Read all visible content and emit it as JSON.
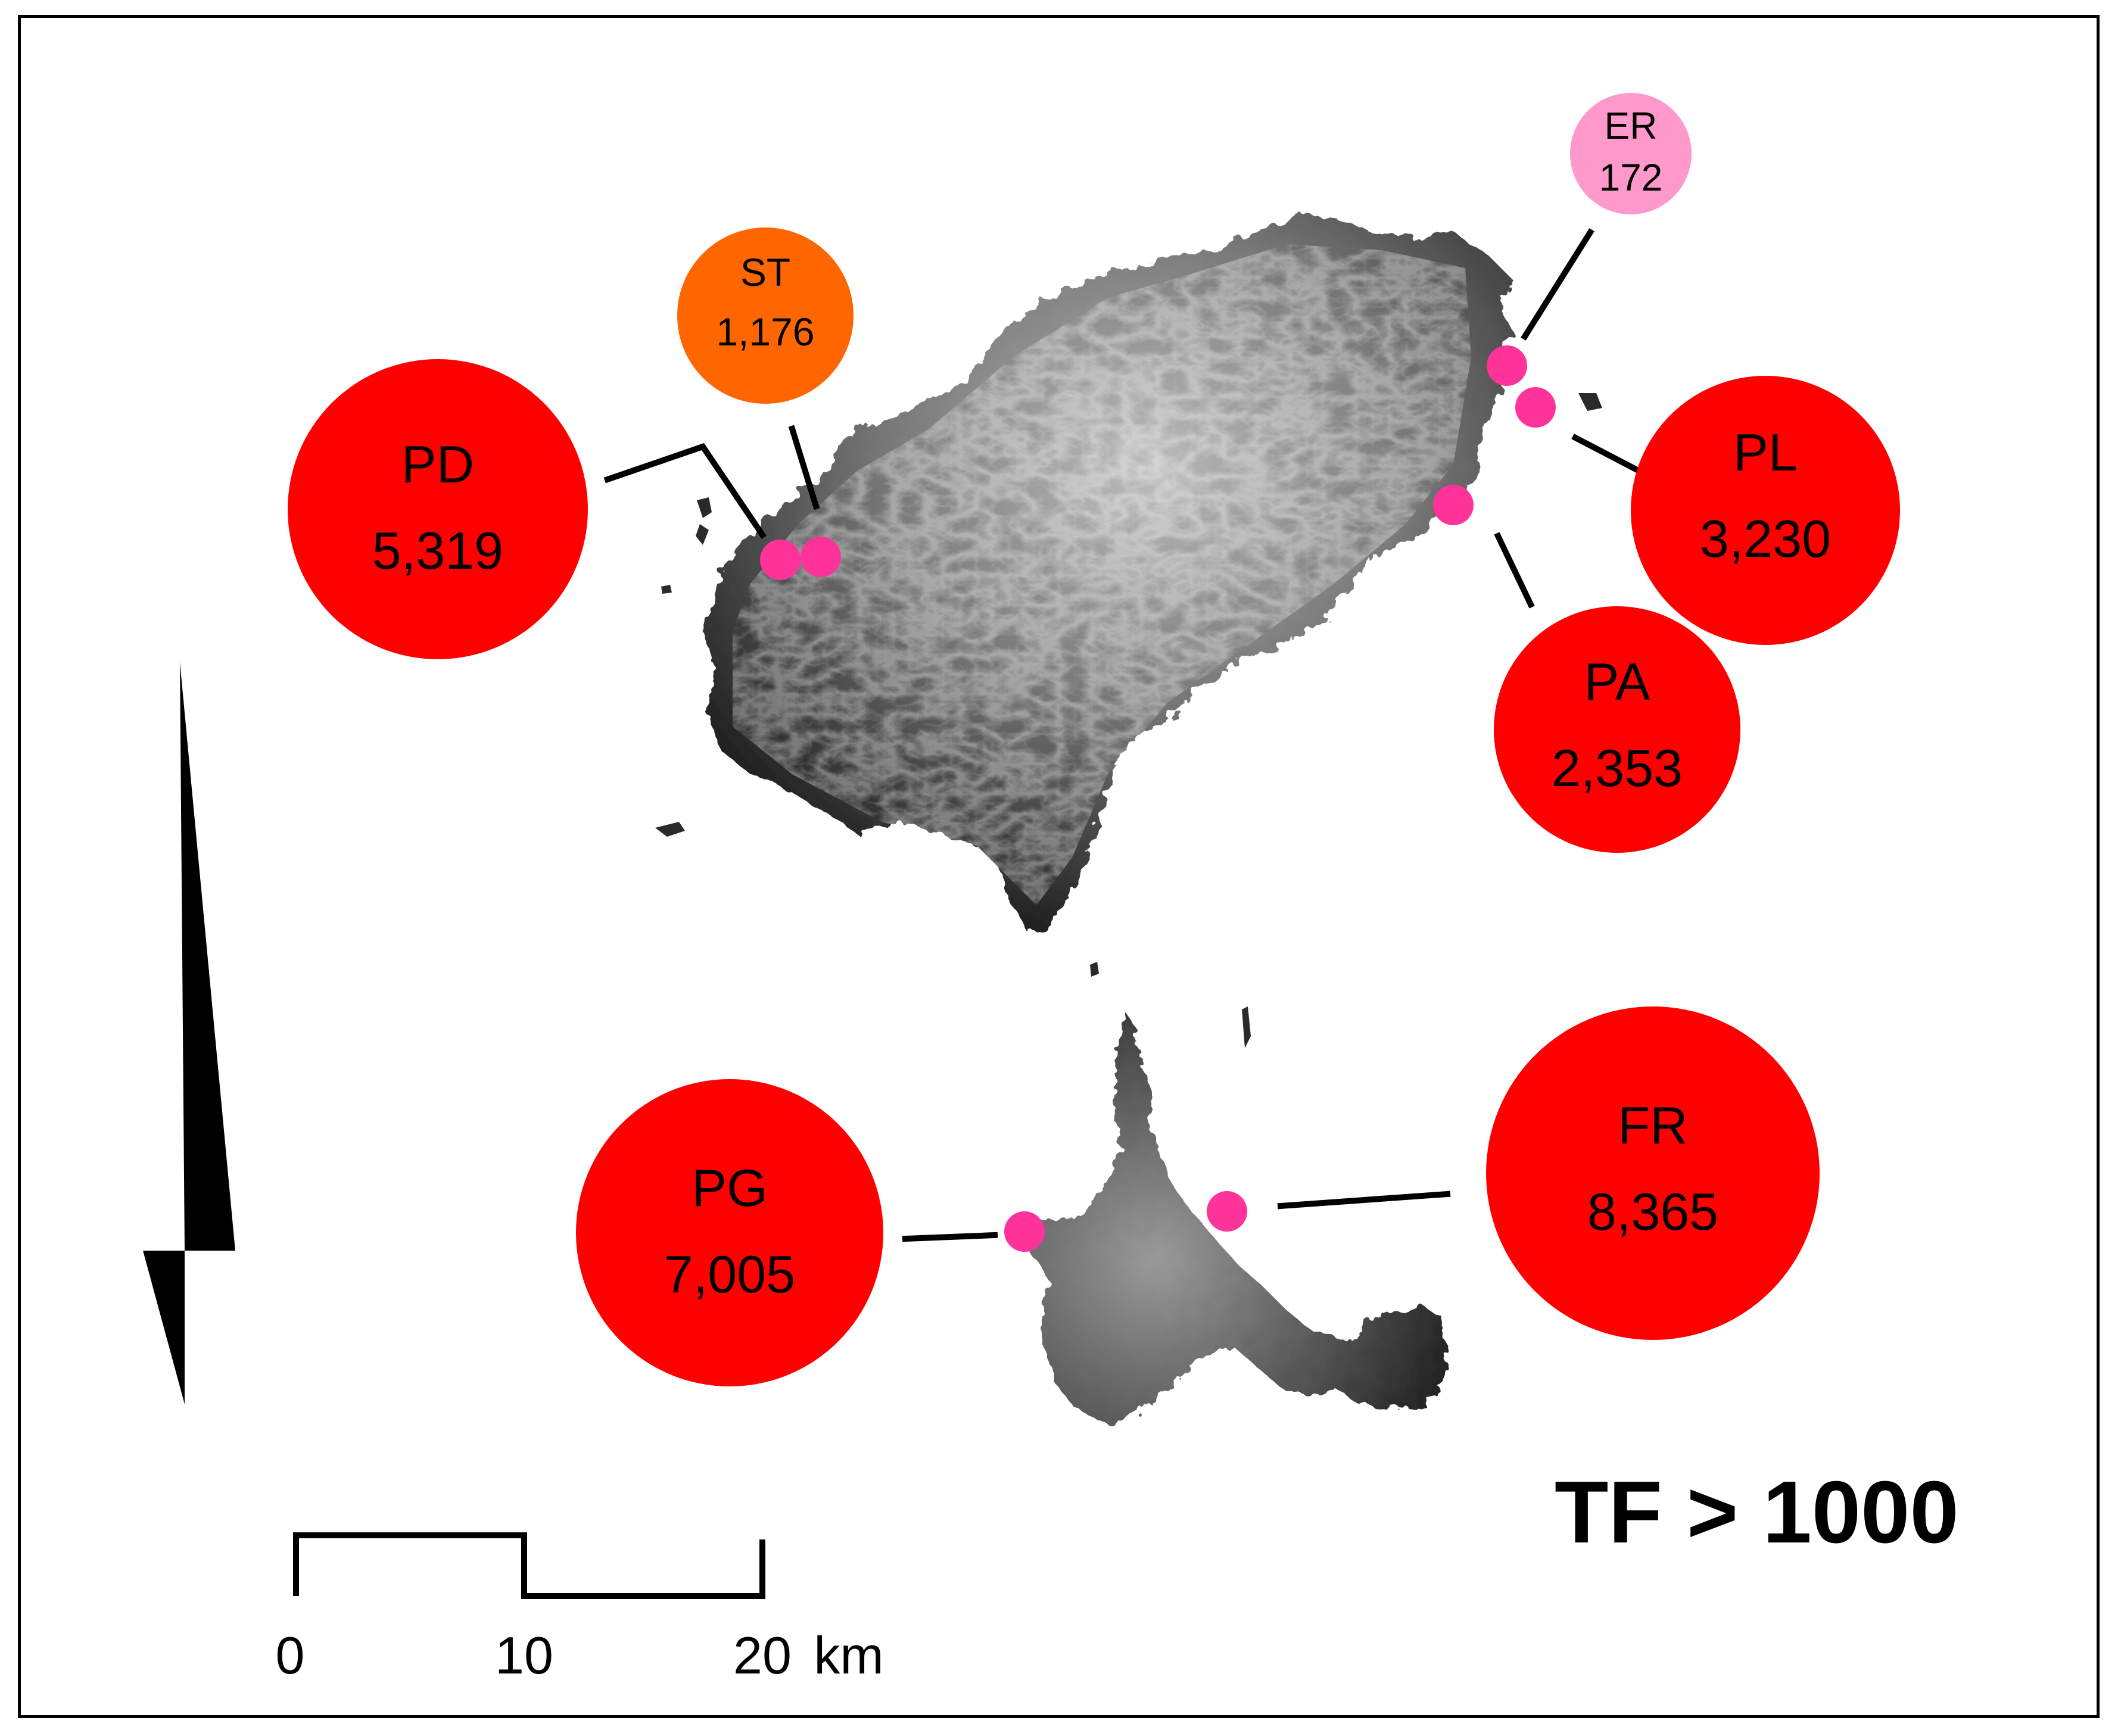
{
  "threshold_label": "TF > 1000",
  "scale_bar": {
    "tick_0": "0",
    "tick_10": "10",
    "tick_20": "20",
    "unit": "km"
  },
  "colors": {
    "high": "#ff0000",
    "medium": "#ff6600",
    "low": "#ff99cc",
    "site_dot": "#ff3399",
    "terrain_dark": "#111111",
    "terrain_light": "#cfcfcf"
  },
  "sites": [
    {
      "code": "PD",
      "value": "5,319",
      "category": "high"
    },
    {
      "code": "ST",
      "value": "1,176",
      "category": "medium"
    },
    {
      "code": "ER",
      "value": "172",
      "category": "low"
    },
    {
      "code": "PL",
      "value": "3,230",
      "category": "high"
    },
    {
      "code": "PA",
      "value": "2,353",
      "category": "high"
    },
    {
      "code": "PG",
      "value": "7,005",
      "category": "high"
    },
    {
      "code": "FR",
      "value": "8,365",
      "category": "high"
    }
  ],
  "icons": {
    "north_arrow": "north-arrow-icon"
  }
}
